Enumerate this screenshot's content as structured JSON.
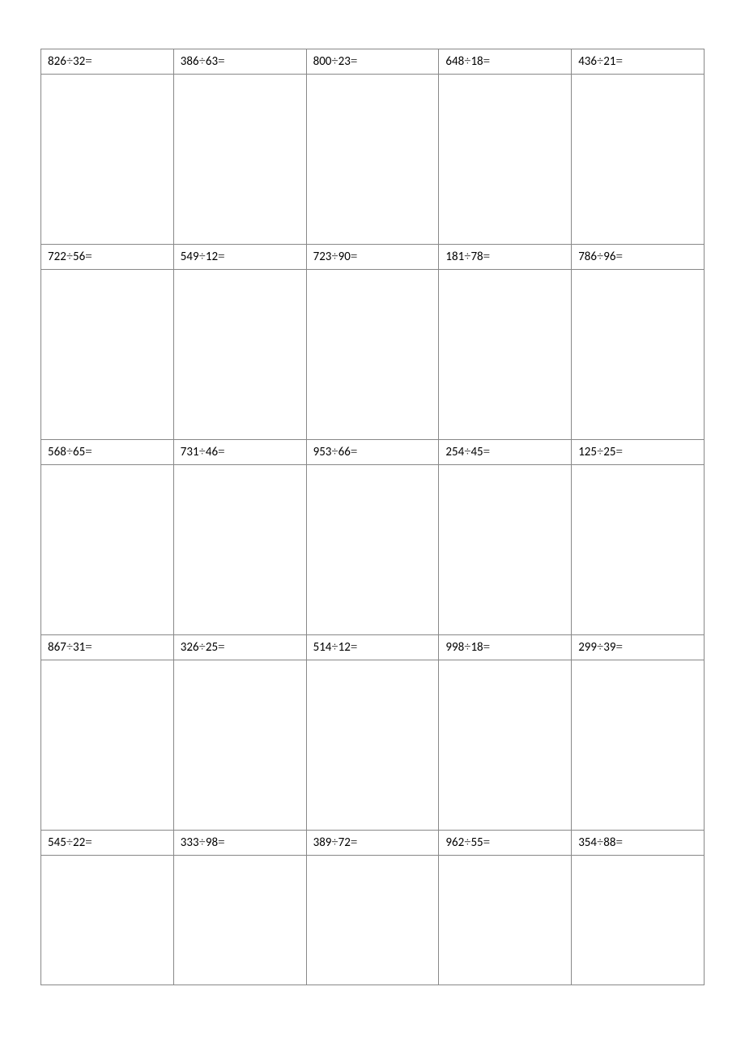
{
  "worksheet": {
    "type": "table",
    "columns": 5,
    "divide_symbol": "÷",
    "equals_symbol": "=",
    "text_color": "#000000",
    "border_color": "#888888",
    "background_color": "#ffffff",
    "problem_fontsize": 15,
    "problem_row_height": 28,
    "work_row_height": 210,
    "last_work_row_height": 160,
    "rows": [
      [
        {
          "dividend": "826",
          "divisor": "32"
        },
        {
          "dividend": "386",
          "divisor": "63"
        },
        {
          "dividend": "800",
          "divisor": "23"
        },
        {
          "dividend": "648",
          "divisor": "18"
        },
        {
          "dividend": "436",
          "divisor": "21"
        }
      ],
      [
        {
          "dividend": "722",
          "divisor": "56"
        },
        {
          "dividend": "549",
          "divisor": "12"
        },
        {
          "dividend": "723",
          "divisor": "90"
        },
        {
          "dividend": "181",
          "divisor": "78"
        },
        {
          "dividend": "786",
          "divisor": "96"
        }
      ],
      [
        {
          "dividend": "568",
          "divisor": "65"
        },
        {
          "dividend": "731",
          "divisor": "46"
        },
        {
          "dividend": "953",
          "divisor": "66"
        },
        {
          "dividend": "254",
          "divisor": "45"
        },
        {
          "dividend": "125",
          "divisor": "25"
        }
      ],
      [
        {
          "dividend": "867",
          "divisor": "31"
        },
        {
          "dividend": "326",
          "divisor": "25"
        },
        {
          "dividend": "514",
          "divisor": "12"
        },
        {
          "dividend": "998",
          "divisor": "18"
        },
        {
          "dividend": "299",
          "divisor": "39"
        }
      ],
      [
        {
          "dividend": "545",
          "divisor": "22"
        },
        {
          "dividend": "333",
          "divisor": "98"
        },
        {
          "dividend": "389",
          "divisor": "72"
        },
        {
          "dividend": "962",
          "divisor": "55"
        },
        {
          "dividend": "354",
          "divisor": "88"
        }
      ]
    ]
  }
}
